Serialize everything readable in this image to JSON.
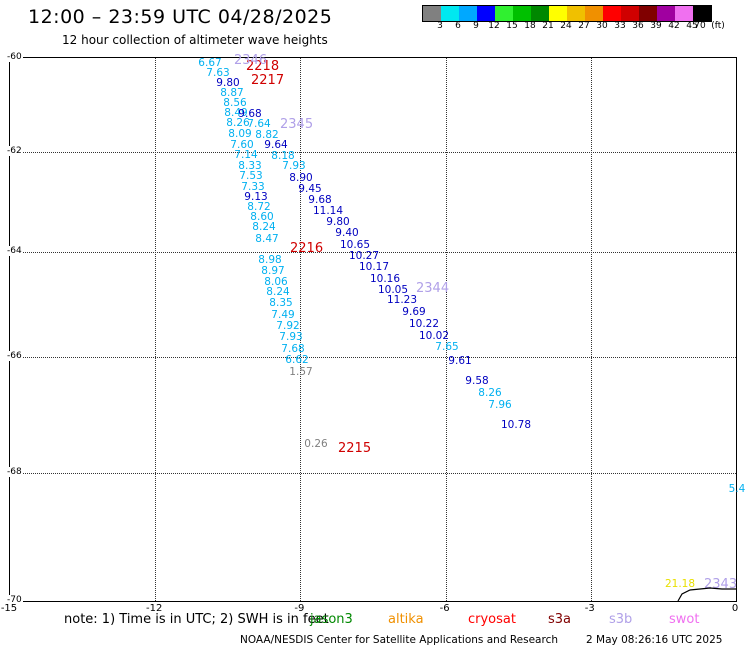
{
  "header": {
    "title": "12:00 – 23:59 UTC 04/28/2025",
    "subtitle": "12 hour collection of altimeter wave heights"
  },
  "legend": {
    "swatches": [
      "#808080",
      "#00e8f0",
      "#00a8ff",
      "#0000ff",
      "#30f030",
      "#00c000",
      "#008800",
      "#ffff00",
      "#f0c000",
      "#f09000",
      "#ff0000",
      "#d00000",
      "#800000",
      "#a000a0",
      "#f070f0",
      "#000000"
    ],
    "ticks": [
      "3",
      "6",
      "9",
      "12",
      "15",
      "18",
      "21",
      "24",
      "27",
      "30",
      "33",
      "36",
      "39",
      "42",
      "45",
      "70",
      "(ft)"
    ]
  },
  "axes": {
    "lat_labels": [
      "-60",
      "-62",
      "-64",
      "-66",
      "-68",
      "-70"
    ],
    "lon_labels": [
      "-15",
      "-12",
      "-9",
      "-6",
      "-3",
      "0"
    ]
  },
  "colors": {
    "cyan_obs": "#00b0f0",
    "blue_obs": "#0000c0",
    "gray_obs": "#808080",
    "yellow_obs": "#e8e000",
    "tag_red": "#d00000",
    "tag_lavender": "#b0a0e8",
    "coastline": "#000000"
  },
  "tracks": {
    "west": [
      {
        "v": "6.67",
        "c": "#00b0f0"
      },
      {
        "v": "7.63",
        "c": "#00b0f0"
      },
      {
        "v": "9.80",
        "c": "#0000c0"
      },
      {
        "v": "8.87",
        "c": "#00b0f0"
      },
      {
        "v": "8.56",
        "c": "#00b0f0"
      },
      {
        "v": "8.49",
        "c": "#00b0f0"
      },
      {
        "v": "9.68",
        "c": "#0000c0"
      },
      {
        "v": "8.26",
        "c": "#00b0f0"
      },
      {
        "v": "7.64",
        "c": "#00b0f0"
      },
      {
        "v": "8.09",
        "c": "#00b0f0"
      },
      {
        "v": "8.82",
        "c": "#00b0f0"
      },
      {
        "v": "7.60",
        "c": "#00b0f0"
      },
      {
        "v": "9.64",
        "c": "#0000c0"
      },
      {
        "v": "7.14",
        "c": "#00b0f0"
      },
      {
        "v": "8.18",
        "c": "#00b0f0"
      },
      {
        "v": "8.33",
        "c": "#00b0f0"
      },
      {
        "v": "7.93",
        "c": "#00b0f0"
      },
      {
        "v": "7.53",
        "c": "#00b0f0"
      },
      {
        "v": "7.33",
        "c": "#00b0f0"
      },
      {
        "v": "9.13",
        "c": "#0000c0"
      },
      {
        "v": "8.72",
        "c": "#00b0f0"
      },
      {
        "v": "8.60",
        "c": "#00b0f0"
      },
      {
        "v": "8.24",
        "c": "#00b0f0"
      },
      {
        "v": "8.47",
        "c": "#00b0f0"
      },
      {
        "v": "8.98",
        "c": "#00b0f0"
      },
      {
        "v": "8.97",
        "c": "#00b0f0"
      },
      {
        "v": "8.06",
        "c": "#00b0f0"
      },
      {
        "v": "8.24",
        "c": "#00b0f0"
      },
      {
        "v": "8.35",
        "c": "#00b0f0"
      },
      {
        "v": "7.49",
        "c": "#00b0f0"
      },
      {
        "v": "7.92",
        "c": "#00b0f0"
      },
      {
        "v": "7.93",
        "c": "#00b0f0"
      },
      {
        "v": "7.68",
        "c": "#00b0f0"
      },
      {
        "v": "6.62",
        "c": "#00b0f0"
      },
      {
        "v": "1.57",
        "c": "#808080"
      },
      {
        "v": "0.26",
        "c": "#808080"
      }
    ],
    "east": [
      {
        "v": "8.90",
        "c": "#0000c0"
      },
      {
        "v": "9.45",
        "c": "#0000c0"
      },
      {
        "v": "9.68",
        "c": "#0000c0"
      },
      {
        "v": "11.14",
        "c": "#0000c0"
      },
      {
        "v": "9.80",
        "c": "#0000c0"
      },
      {
        "v": "9.40",
        "c": "#0000c0"
      },
      {
        "v": "10.65",
        "c": "#0000c0"
      },
      {
        "v": "10.27",
        "c": "#0000c0"
      },
      {
        "v": "10.17",
        "c": "#0000c0"
      },
      {
        "v": "10.16",
        "c": "#0000c0"
      },
      {
        "v": "10.05",
        "c": "#0000c0"
      },
      {
        "v": "11.23",
        "c": "#0000c0"
      },
      {
        "v": "9.69",
        "c": "#0000c0"
      },
      {
        "v": "10.22",
        "c": "#0000c0"
      },
      {
        "v": "10.02",
        "c": "#0000c0"
      },
      {
        "v": "7.65",
        "c": "#00b0f0"
      },
      {
        "v": "9.61",
        "c": "#0000c0"
      },
      {
        "v": "9.58",
        "c": "#0000c0"
      },
      {
        "v": "8.26",
        "c": "#00b0f0"
      },
      {
        "v": "7.96",
        "c": "#00b0f0"
      },
      {
        "v": "10.78",
        "c": "#0000c0"
      }
    ],
    "edge": [
      {
        "v": "5.4",
        "c": "#00b0f0"
      },
      {
        "v": "21.18",
        "c": "#e8e000"
      }
    ]
  },
  "time_tags": {
    "red": [
      "2218",
      "2217",
      "2216",
      "2215"
    ],
    "lavender": [
      "2346",
      "2345",
      "2344",
      "2343"
    ]
  },
  "footer": {
    "note": "note:  1) Time is in UTC; 2) SWH is in feet",
    "satellites": [
      {
        "name": "jason3",
        "color": "#008800"
      },
      {
        "name": "altika",
        "color": "#f09000"
      },
      {
        "name": "cryosat",
        "color": "#ff0000"
      },
      {
        "name": "s3a",
        "color": "#800000"
      },
      {
        "name": "s3b",
        "color": "#b0a0e8"
      },
      {
        "name": "swot",
        "color": "#f070f0"
      }
    ],
    "credit": "NOAA/NESDIS Center for Satellite Applications and Research",
    "timestamp": "2 May 08:26:16 UTC 2025"
  }
}
